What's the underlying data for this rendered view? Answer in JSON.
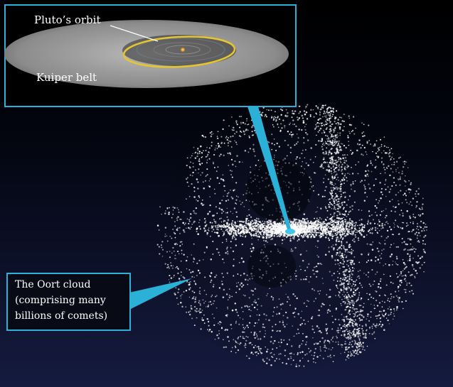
{
  "diagram": {
    "labels": {
      "pluto_orbit": "Pluto’s orbit",
      "kuiper_belt": "Kuiper belt",
      "oort_cloud": [
        "The Oort cloud",
        "(comprising many",
        "billions of comets)"
      ]
    },
    "colors": {
      "background_top": "#000000",
      "background_bottom": "#151b3f",
      "callout": "#2bb0d8",
      "pluto_orbit": "#e7c52c",
      "dots": "#ffffff"
    }
  }
}
